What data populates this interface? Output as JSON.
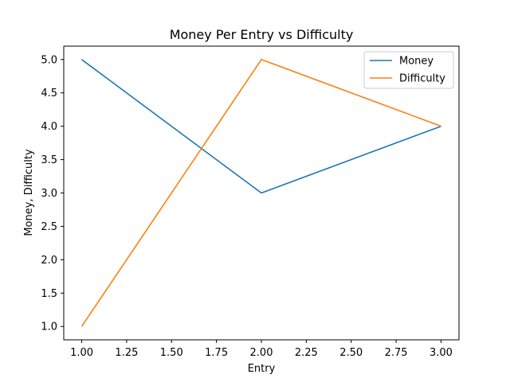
{
  "chart_data": {
    "type": "line",
    "title": "Money Per Entry vs Difficulty",
    "xlabel": "Entry",
    "ylabel": "Money, Difficulty",
    "x": [
      1.0,
      2.0,
      3.0
    ],
    "series": [
      {
        "name": "Money",
        "values": [
          5.0,
          3.0,
          4.0
        ],
        "color": "#1f77b4"
      },
      {
        "name": "Difficulty",
        "values": [
          1.0,
          5.0,
          4.0
        ],
        "color": "#ff7f0e"
      }
    ],
    "xlim": [
      0.9,
      3.1
    ],
    "ylim": [
      0.8,
      5.2
    ],
    "xticks": [
      "1.00",
      "1.25",
      "1.50",
      "1.75",
      "2.00",
      "2.25",
      "2.50",
      "2.75",
      "3.00"
    ],
    "yticks": [
      "1.0",
      "1.5",
      "2.0",
      "2.5",
      "3.0",
      "3.5",
      "4.0",
      "4.5",
      "5.0"
    ],
    "grid": false,
    "legend_position": "top-right"
  }
}
